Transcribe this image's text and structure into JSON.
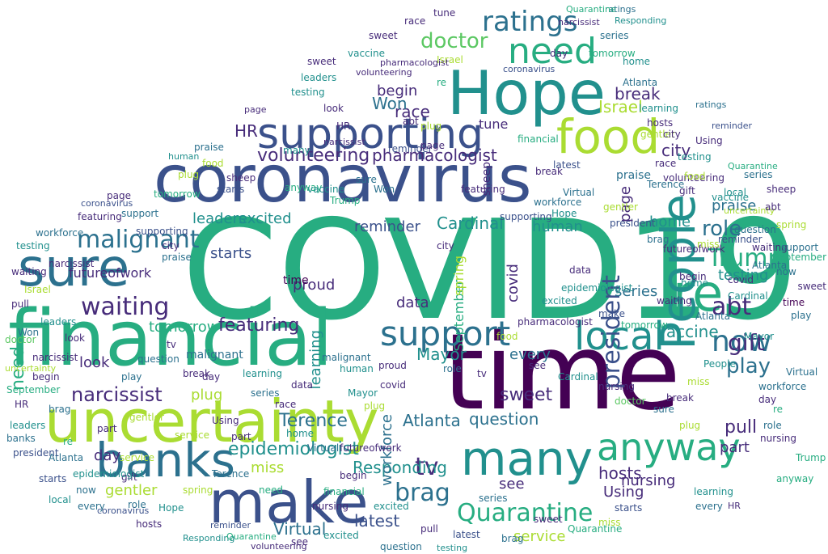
{
  "title": "",
  "palette": {
    "dark_purple": "#440154",
    "purple": "#472c7a",
    "indigo": "#3b518b",
    "blue": "#2c718e",
    "teal": "#21908d",
    "green": "#27ad81",
    "green_light": "#5cc863",
    "lime": "#aadc32",
    "yellow": "#fde725"
  },
  "words": [
    {
      "text": "COVID19",
      "color": "#27ad81"
    },
    {
      "text": "time",
      "color": "#440154"
    },
    {
      "text": "financial",
      "color": "#27ad81"
    },
    {
      "text": "coronavirus",
      "color": "#3b518b"
    },
    {
      "text": "uncertainty",
      "color": "#aadc32"
    },
    {
      "text": "Hope",
      "color": "#21908d"
    },
    {
      "text": "make",
      "color": "#3b518b"
    },
    {
      "text": "banks",
      "color": "#2c718e"
    },
    {
      "text": "many",
      "color": "#21908d"
    },
    {
      "text": "supporting",
      "color": "#3b518b"
    },
    {
      "text": "sure",
      "color": "#2c718e"
    },
    {
      "text": "food",
      "color": "#aadc32"
    },
    {
      "text": "re",
      "color": "#27ad81"
    },
    {
      "text": "need",
      "color": "#27ad81"
    },
    {
      "text": "People",
      "color": "#21908d"
    },
    {
      "text": "local",
      "color": "#21908d"
    },
    {
      "text": "support",
      "color": "#2c718e"
    },
    {
      "text": "anyway",
      "color": "#27ad81"
    },
    {
      "text": "ratings",
      "color": "#2c718e"
    },
    {
      "text": "now",
      "color": "#2c718e"
    },
    {
      "text": "president",
      "color": "#3b518b"
    },
    {
      "text": "Quarantine",
      "color": "#27ad81"
    },
    {
      "text": "brag",
      "color": "#2c718e"
    },
    {
      "text": "malignant",
      "color": "#2c718e"
    },
    {
      "text": "waiting",
      "color": "#472c7a"
    },
    {
      "text": "Trump",
      "color": "#27ad81"
    },
    {
      "text": "doctor",
      "color": "#5cc863"
    },
    {
      "text": "volunteering",
      "color": "#472c7a"
    },
    {
      "text": "abt",
      "color": "#472c7a"
    },
    {
      "text": "gift",
      "color": "#472c7a"
    },
    {
      "text": "play",
      "color": "#2c718e"
    },
    {
      "text": "narcissist",
      "color": "#472c7a"
    },
    {
      "text": "Terence",
      "color": "#2c718e"
    },
    {
      "text": "epidemiologist",
      "color": "#21908d"
    },
    {
      "text": "pharmacologist",
      "color": "#472c7a"
    },
    {
      "text": "role",
      "color": "#2c718e"
    },
    {
      "text": "Atlanta",
      "color": "#2c718e"
    },
    {
      "text": "tv",
      "color": "#472c7a"
    },
    {
      "text": "featuring",
      "color": "#472c7a"
    },
    {
      "text": "Responding",
      "color": "#21908d"
    },
    {
      "text": "sweet",
      "color": "#472c7a"
    },
    {
      "text": "question",
      "color": "#2c718e"
    },
    {
      "text": "Mayor",
      "color": "#21908d"
    },
    {
      "text": "Cardinal",
      "color": "#21908d"
    },
    {
      "text": "city",
      "color": "#472c7a"
    },
    {
      "text": "miss",
      "color": "#aadc32"
    },
    {
      "text": "gentler",
      "color": "#aadc32"
    },
    {
      "text": "vaccine",
      "color": "#21908d"
    },
    {
      "text": "workforce",
      "color": "#2c718e"
    },
    {
      "text": "latest",
      "color": "#3b518b"
    },
    {
      "text": "Virtual",
      "color": "#2c718e"
    },
    {
      "text": "hosts",
      "color": "#472c7a"
    },
    {
      "text": "Israel",
      "color": "#aadc32"
    },
    {
      "text": "break",
      "color": "#472c7a"
    },
    {
      "text": "HR",
      "color": "#472c7a"
    },
    {
      "text": "race",
      "color": "#472c7a"
    },
    {
      "text": "Won",
      "color": "#2c718e"
    },
    {
      "text": "excited",
      "color": "#21908d"
    },
    {
      "text": "leaders",
      "color": "#21908d"
    },
    {
      "text": "day",
      "color": "#472c7a"
    },
    {
      "text": "starts",
      "color": "#3b518b"
    },
    {
      "text": "reminder",
      "color": "#3b518b"
    },
    {
      "text": "plug",
      "color": "#aadc32"
    },
    {
      "text": "look",
      "color": "#472c7a"
    },
    {
      "text": "every",
      "color": "#2c718e"
    },
    {
      "text": "home",
      "color": "#21908d"
    },
    {
      "text": "praise",
      "color": "#2c718e"
    },
    {
      "text": "series",
      "color": "#2c718e"
    },
    {
      "text": "nursing",
      "color": "#472c7a"
    },
    {
      "text": "begin",
      "color": "#472c7a"
    },
    {
      "text": "data",
      "color": "#472c7a"
    },
    {
      "text": "part",
      "color": "#472c7a"
    },
    {
      "text": "testing",
      "color": "#21908d"
    },
    {
      "text": "human",
      "color": "#21908d"
    },
    {
      "text": "tomorrow",
      "color": "#27ad81"
    },
    {
      "text": "proud",
      "color": "#472c7a"
    },
    {
      "text": "futureofwork",
      "color": "#472c7a"
    },
    {
      "text": "September",
      "color": "#27ad81"
    },
    {
      "text": "covid",
      "color": "#472c7a"
    },
    {
      "text": "see",
      "color": "#472c7a"
    },
    {
      "text": "Using",
      "color": "#472c7a"
    },
    {
      "text": "service",
      "color": "#aadc32"
    },
    {
      "text": "learning",
      "color": "#21908d"
    },
    {
      "text": "page",
      "color": "#472c7a"
    },
    {
      "text": "pull",
      "color": "#472c7a"
    },
    {
      "text": "spring",
      "color": "#aadc32"
    },
    {
      "text": "tune",
      "color": "#472c7a"
    },
    {
      "text": "sheep",
      "color": "#472c7a"
    }
  ]
}
